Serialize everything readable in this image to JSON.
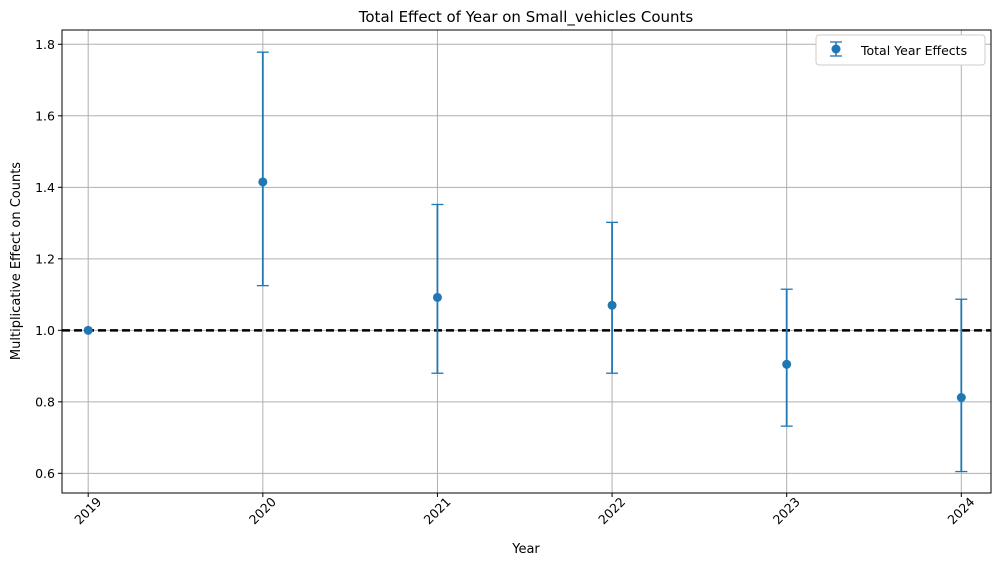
{
  "chart_data": {
    "type": "scatter",
    "title": "Total Effect of Year on Small_vehicles Counts",
    "xlabel": "Year",
    "ylabel": "Multiplicative Effect on Counts",
    "categories": [
      "2019",
      "2020",
      "2021",
      "2022",
      "2023",
      "2024"
    ],
    "x": [
      2019,
      2020,
      2021,
      2022,
      2023,
      2024
    ],
    "series": [
      {
        "name": "Total Year Effects",
        "values": [
          1.0,
          1.415,
          1.092,
          1.07,
          0.905,
          0.812
        ],
        "lower": [
          1.0,
          1.125,
          0.88,
          0.88,
          0.732,
          0.605
        ],
        "upper": [
          1.0,
          1.778,
          1.352,
          1.302,
          1.115,
          1.087
        ],
        "color": "#1f77b4"
      }
    ],
    "reference_line": {
      "y": 1.0,
      "style": "dashed",
      "color": "#000000"
    },
    "xlim": [
      2018.85,
      2024.17
    ],
    "ylim": [
      0.545,
      1.84
    ],
    "yticks": [
      0.6,
      0.8,
      1.0,
      1.2,
      1.4,
      1.6,
      1.8
    ],
    "ytick_labels": [
      "0.6",
      "0.8",
      "1.0",
      "1.2",
      "1.4",
      "1.6",
      "1.8"
    ],
    "grid": true,
    "legend_position": "top-right"
  }
}
